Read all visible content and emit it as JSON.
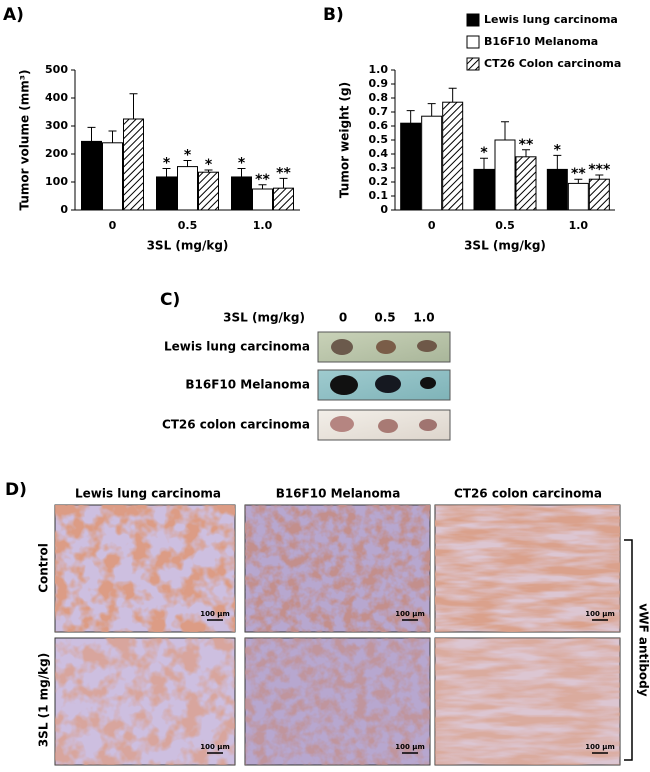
{
  "chart_data": [
    {
      "type": "bar",
      "title": "A)",
      "y_label": "Tumor volume (mm³)",
      "x_label": "3SL (mg/kg)",
      "categories": [
        "0",
        "0.5",
        "1.0"
      ],
      "ylim": [
        0,
        500
      ],
      "yticks": [
        0,
        100,
        200,
        300,
        400,
        500
      ],
      "series": [
        {
          "color": "#000000",
          "values": [
            245,
            118,
            118
          ],
          "errors": [
            50,
            30,
            30
          ],
          "significance": [
            null,
            "*",
            "*"
          ]
        },
        {
          "color": "#ffffff",
          "values": [
            240,
            155,
            75
          ],
          "errors": [
            42,
            22,
            15
          ],
          "significance": [
            null,
            "*",
            "**"
          ]
        },
        {
          "color": "#ffffff",
          "pattern": "diagonal",
          "values": [
            325,
            135,
            78
          ],
          "errors": [
            90,
            8,
            35
          ],
          "significance": [
            null,
            "*",
            "**"
          ]
        }
      ]
    },
    {
      "type": "bar",
      "title": "B)",
      "y_label": "Tumor weight (g)",
      "x_label": "3SL (mg/kg)",
      "categories": [
        "0",
        "0.5",
        "1.0"
      ],
      "ylim": [
        0,
        1
      ],
      "yticks": [
        0,
        0.1,
        0.2,
        0.3,
        0.4,
        0.5,
        0.6,
        0.7,
        0.8,
        0.9,
        {
          "value": 1,
          "label": "1.0"
        }
      ],
      "legend": "upper right",
      "series": [
        {
          "name": "Lewis lung carcinoma",
          "color": "#000000",
          "values": [
            0.62,
            0.29,
            0.29
          ],
          "errors": [
            0.09,
            0.08,
            0.1
          ],
          "significance": [
            null,
            "*",
            "*"
          ]
        },
        {
          "name": "B16F10 Melanoma",
          "color": "#ffffff",
          "values": [
            0.67,
            0.5,
            0.19
          ],
          "errors": [
            0.09,
            0.13,
            0.03
          ],
          "significance": [
            null,
            null,
            "**"
          ]
        },
        {
          "name": "CT26 Colon carcinoma",
          "color": "#ffffff",
          "pattern": "diagonal",
          "values": [
            0.77,
            0.38,
            0.22
          ],
          "errors": [
            0.1,
            0.05,
            0.03
          ],
          "significance": [
            null,
            "**",
            "***"
          ]
        }
      ]
    }
  ],
  "panel_c": {
    "title": "C)",
    "dose_header": "3SL (mg/kg)",
    "doses": [
      "0",
      "0.5",
      "1.0"
    ],
    "rows": [
      "Lewis lung carcinoma",
      "B16F10 Melanoma",
      "CT26 colon carcinoma"
    ]
  },
  "panel_d": {
    "title": "D)",
    "columns": [
      "Lewis lung carcinoma",
      "B16F10 Melanoma",
      "CT26 colon carcinoma"
    ],
    "rows": [
      "Control",
      "3SL (1 mg/kg)"
    ],
    "scale_bar": "100 μm",
    "stain": "vWF antibody"
  }
}
